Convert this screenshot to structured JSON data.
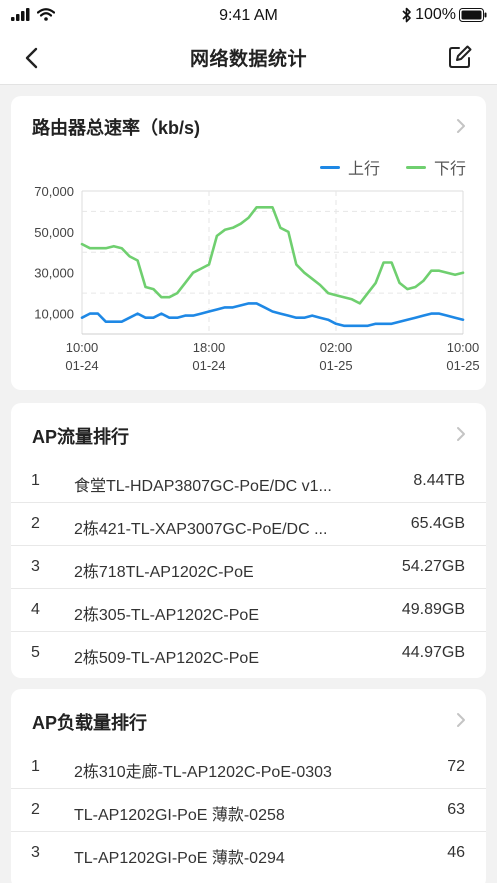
{
  "status_bar": {
    "time": "9:41 AM",
    "battery": "100%"
  },
  "nav": {
    "title": "网络数据统计"
  },
  "rate_card": {
    "title": "路由器总速率（kb/s)",
    "legend": [
      {
        "name": "上行",
        "color": "#1e88e5"
      },
      {
        "name": "下行",
        "color": "#6fcf6f"
      }
    ]
  },
  "chart_data": {
    "type": "line",
    "title": "路由器总速率（kb/s)",
    "ylim": [
      0,
      70000
    ],
    "y_ticks": [
      "10,000",
      "30,000",
      "50,000",
      "70,000"
    ],
    "x_ticks": [
      {
        "time": "10:00",
        "date": "01-24"
      },
      {
        "time": "18:00",
        "date": "01-24"
      },
      {
        "time": "02:00",
        "date": "01-25"
      },
      {
        "time": "10:00",
        "date": "01-25"
      }
    ],
    "x_range": [
      0,
      24
    ],
    "grid": true,
    "legend_position": "top-right",
    "series": [
      {
        "name": "上行",
        "color": "#1e88e5",
        "x": [
          0,
          0.5,
          1,
          1.5,
          2,
          2.5,
          3,
          3.5,
          4,
          4.5,
          5,
          5.5,
          6,
          6.5,
          7,
          7.5,
          8,
          8.5,
          9,
          9.5,
          10,
          10.5,
          11,
          11.5,
          12,
          12.5,
          13,
          13.5,
          14,
          14.5,
          15,
          15.5,
          16,
          16.5,
          17,
          17.5,
          18,
          18.5,
          19,
          19.5,
          20,
          20.5,
          21,
          21.5,
          22,
          22.5,
          23,
          23.5,
          24
        ],
        "values": [
          8000,
          10000,
          10000,
          6000,
          6000,
          6000,
          8000,
          10000,
          8000,
          8000,
          10000,
          8000,
          8000,
          9000,
          9000,
          10000,
          11000,
          12000,
          13000,
          13000,
          14000,
          15000,
          15000,
          13000,
          11000,
          10000,
          9000,
          8000,
          8000,
          9000,
          8000,
          7000,
          5000,
          4000,
          4000,
          4000,
          4000,
          5000,
          5000,
          5000,
          6000,
          7000,
          8000,
          9000,
          10000,
          10000,
          9000,
          8000,
          7000
        ]
      },
      {
        "name": "下行",
        "color": "#6fcf6f",
        "x": [
          0,
          0.5,
          1,
          1.5,
          2,
          2.5,
          3,
          3.5,
          4,
          4.5,
          5,
          5.5,
          6,
          6.5,
          7,
          7.5,
          8,
          8.5,
          9,
          9.5,
          10,
          10.5,
          11,
          11.5,
          12,
          12.5,
          13,
          13.5,
          14,
          14.5,
          15,
          15.5,
          16,
          16.5,
          17,
          17.5,
          18,
          18.5,
          19,
          19.5,
          20,
          20.5,
          21,
          21.5,
          22,
          22.5,
          23,
          23.5,
          24
        ],
        "values": [
          44000,
          42000,
          42000,
          42000,
          43000,
          42000,
          38000,
          36000,
          23000,
          22000,
          18000,
          18000,
          20000,
          25000,
          30000,
          32000,
          34000,
          48000,
          51000,
          52000,
          54000,
          57000,
          62000,
          62000,
          62000,
          52000,
          50000,
          34000,
          30000,
          27000,
          24000,
          20000,
          19000,
          18000,
          17000,
          15000,
          20000,
          25000,
          35000,
          35000,
          25000,
          22000,
          23000,
          26000,
          31000,
          31000,
          30000,
          29000,
          30000
        ]
      }
    ]
  },
  "traffic_card": {
    "title": "AP流量排行",
    "rows": [
      {
        "rank": "1",
        "name": "食堂TL-HDAP3807GC-PoE/DC v1...",
        "value": "8.44TB"
      },
      {
        "rank": "2",
        "name": "2栋421-TL-XAP3007GC-PoE/DC ...",
        "value": "65.4GB"
      },
      {
        "rank": "3",
        "name": "2栋718TL-AP1202C-PoE",
        "value": "54.27GB"
      },
      {
        "rank": "4",
        "name": "2栋305-TL-AP1202C-PoE",
        "value": "49.89GB"
      },
      {
        "rank": "5",
        "name": "2栋509-TL-AP1202C-PoE",
        "value": "44.97GB"
      }
    ]
  },
  "load_card": {
    "title": "AP负载量排行",
    "rows": [
      {
        "rank": "1",
        "name": "2栋310走廊-TL-AP1202C-PoE-0303",
        "value": "72"
      },
      {
        "rank": "2",
        "name": "TL-AP1202GI-PoE 薄款-0258",
        "value": "63"
      },
      {
        "rank": "3",
        "name": "TL-AP1202GI-PoE 薄款-0294",
        "value": "46"
      }
    ]
  }
}
